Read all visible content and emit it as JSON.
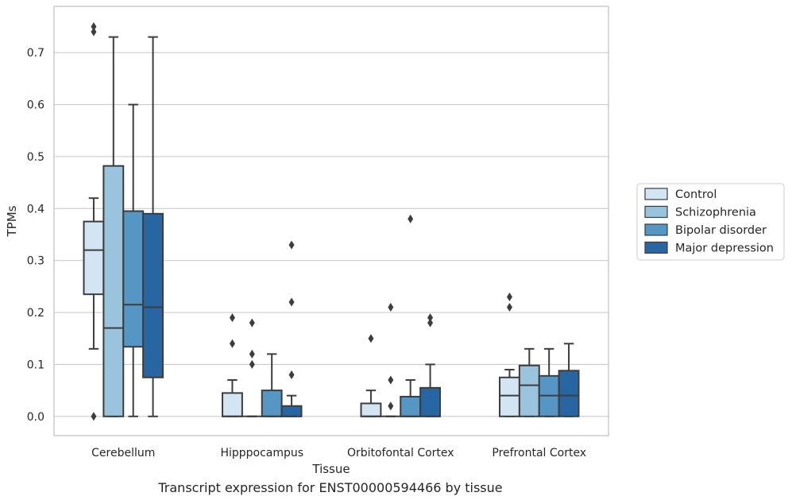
{
  "caption": "Transcript expression for ENST00000594466 by tissue",
  "chart_data": {
    "type": "boxplot",
    "title": "",
    "xlabel": "Tissue",
    "ylabel": "TPMs",
    "ylim": [
      -0.037,
      0.789
    ],
    "yticks": [
      0.0,
      0.1,
      0.2,
      0.3,
      0.4,
      0.5,
      0.6,
      0.7
    ],
    "ytick_labels": [
      "0.0",
      "0.1",
      "0.2",
      "0.3",
      "0.4",
      "0.5",
      "0.6",
      "0.7"
    ],
    "grid": "horizontal",
    "legend_position": "right",
    "categories": [
      "Cerebellum",
      "Hipppocampus",
      "Orbitofontal Cortex",
      "Prefrontal Cortex"
    ],
    "series": [
      {
        "name": "Control",
        "color": "#d3e4f3",
        "boxes": [
          {
            "whislo": 0.13,
            "q1": 0.235,
            "med": 0.32,
            "q3": 0.375,
            "whishi": 0.42,
            "fliers": [
              0.75,
              0.74,
              0.0
            ]
          },
          {
            "whislo": 0.0,
            "q1": 0.0,
            "med": 0.0,
            "q3": 0.045,
            "whishi": 0.07,
            "fliers": [
              0.19,
              0.14
            ]
          },
          {
            "whislo": 0.0,
            "q1": 0.0,
            "med": 0.0,
            "q3": 0.025,
            "whishi": 0.05,
            "fliers": [
              0.15
            ]
          },
          {
            "whislo": 0.0,
            "q1": 0.0,
            "med": 0.04,
            "q3": 0.075,
            "whishi": 0.09,
            "fliers": [
              0.23,
              0.21
            ]
          }
        ]
      },
      {
        "name": "Schizophrenia",
        "color": "#9ac3de",
        "boxes": [
          {
            "whislo": 0.0,
            "q1": 0.0,
            "med": 0.17,
            "q3": 0.482,
            "whishi": 0.73,
            "fliers": []
          },
          {
            "whislo": 0.0,
            "q1": 0.0,
            "med": 0.0,
            "q3": 0.0,
            "whishi": 0.0,
            "fliers": [
              0.18,
              0.12,
              0.1
            ]
          },
          {
            "whislo": 0.0,
            "q1": 0.0,
            "med": 0.0,
            "q3": 0.0,
            "whishi": 0.0,
            "fliers": [
              0.21,
              0.07,
              0.02
            ]
          },
          {
            "whislo": 0.0,
            "q1": 0.0,
            "med": 0.06,
            "q3": 0.098,
            "whishi": 0.13,
            "fliers": []
          }
        ]
      },
      {
        "name": "Bipolar disorder",
        "color": "#5596c4",
        "boxes": [
          {
            "whislo": 0.0,
            "q1": 0.134,
            "med": 0.215,
            "q3": 0.395,
            "whishi": 0.6,
            "fliers": []
          },
          {
            "whislo": 0.0,
            "q1": 0.0,
            "med": 0.0,
            "q3": 0.05,
            "whishi": 0.12,
            "fliers": []
          },
          {
            "whislo": 0.0,
            "q1": 0.0,
            "med": 0.0,
            "q3": 0.038,
            "whishi": 0.07,
            "fliers": [
              0.38
            ]
          },
          {
            "whislo": 0.0,
            "q1": 0.0,
            "med": 0.04,
            "q3": 0.078,
            "whishi": 0.13,
            "fliers": []
          }
        ]
      },
      {
        "name": "Major depression",
        "color": "#2866a3",
        "boxes": [
          {
            "whislo": 0.0,
            "q1": 0.075,
            "med": 0.21,
            "q3": 0.39,
            "whishi": 0.73,
            "fliers": []
          },
          {
            "whislo": 0.0,
            "q1": 0.0,
            "med": 0.0,
            "q3": 0.02,
            "whishi": 0.04,
            "fliers": [
              0.33,
              0.22,
              0.08
            ]
          },
          {
            "whislo": 0.0,
            "q1": 0.0,
            "med": 0.0,
            "q3": 0.055,
            "whishi": 0.1,
            "fliers": [
              0.19,
              0.18
            ]
          },
          {
            "whislo": 0.0,
            "q1": 0.0,
            "med": 0.04,
            "q3": 0.088,
            "whishi": 0.14,
            "fliers": []
          }
        ]
      }
    ]
  }
}
